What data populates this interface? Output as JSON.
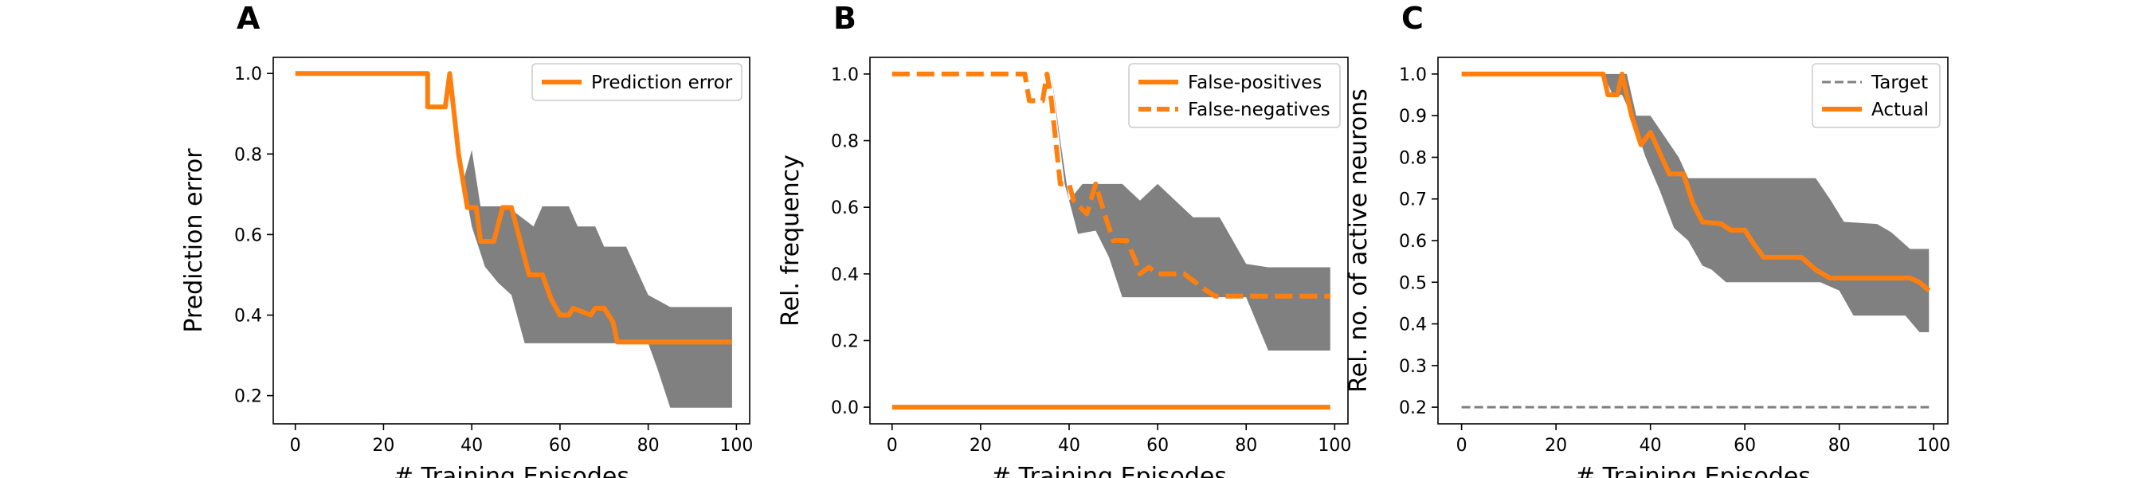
{
  "colors": {
    "orange": "#ff7f0e",
    "band": "#808080",
    "target": "#808080"
  },
  "chart_data": [
    {
      "panel": "A",
      "type": "line",
      "xlabel": "# Training Episodes",
      "ylabel": "Prediction error",
      "xlim": [
        -5,
        103
      ],
      "ylim": [
        0.13,
        1.04
      ],
      "xticks": [
        0,
        20,
        40,
        60,
        80,
        100
      ],
      "yticks": [
        0.2,
        0.4,
        0.6,
        0.8,
        1.0
      ],
      "ytick_labels": [
        "0.2",
        "0.4",
        "0.6",
        "0.8",
        "1.0"
      ],
      "legend_position": "upper-right",
      "series": [
        {
          "name": "Prediction error",
          "style": "solid",
          "points": [
            [
              0,
              1.0
            ],
            [
              30,
              1.0
            ],
            [
              30,
              0.917
            ],
            [
              34,
              0.917
            ],
            [
              35,
              1.0
            ],
            [
              37,
              0.8
            ],
            [
              39,
              0.667
            ],
            [
              41,
              0.667
            ],
            [
              42,
              0.583
            ],
            [
              45,
              0.583
            ],
            [
              47,
              0.667
            ],
            [
              49,
              0.667
            ],
            [
              51,
              0.583
            ],
            [
              53,
              0.5
            ],
            [
              56,
              0.5
            ],
            [
              58,
              0.44
            ],
            [
              60,
              0.4
            ],
            [
              62,
              0.4
            ],
            [
              63,
              0.417
            ],
            [
              67,
              0.4
            ],
            [
              68,
              0.417
            ],
            [
              70,
              0.417
            ],
            [
              72,
              0.383
            ],
            [
              73,
              0.333
            ],
            [
              99,
              0.333
            ]
          ]
        }
      ],
      "band": {
        "upper": [
          [
            0,
            1.0
          ],
          [
            30,
            1.0
          ],
          [
            35,
            1.0
          ],
          [
            38,
            0.73
          ],
          [
            40,
            0.81
          ],
          [
            42,
            0.67
          ],
          [
            45,
            0.67
          ],
          [
            48,
            0.67
          ],
          [
            54,
            0.62
          ],
          [
            56,
            0.67
          ],
          [
            62,
            0.67
          ],
          [
            64,
            0.62
          ],
          [
            68,
            0.62
          ],
          [
            70,
            0.57
          ],
          [
            75,
            0.57
          ],
          [
            80,
            0.45
          ],
          [
            85,
            0.42
          ],
          [
            99,
            0.42
          ]
        ],
        "lower": [
          [
            99,
            0.17
          ],
          [
            85,
            0.17
          ],
          [
            82,
            0.27
          ],
          [
            80,
            0.33
          ],
          [
            52,
            0.33
          ],
          [
            49,
            0.45
          ],
          [
            46,
            0.48
          ],
          [
            43,
            0.52
          ],
          [
            40,
            0.62
          ],
          [
            37,
            0.8
          ],
          [
            35,
            1.0
          ],
          [
            30,
            1.0
          ],
          [
            0,
            1.0
          ]
        ]
      }
    },
    {
      "panel": "B",
      "type": "line",
      "xlabel": "# Training Episodes",
      "ylabel": "Rel. frequency",
      "xlim": [
        -5,
        103
      ],
      "ylim": [
        -0.05,
        1.05
      ],
      "xticks": [
        0,
        20,
        40,
        60,
        80,
        100
      ],
      "yticks": [
        0.0,
        0.2,
        0.4,
        0.6,
        0.8,
        1.0
      ],
      "ytick_labels": [
        "0.0",
        "0.2",
        "0.4",
        "0.6",
        "0.8",
        "1.0"
      ],
      "legend_position": "upper-right",
      "series": [
        {
          "name": "False-positives",
          "style": "solid",
          "points": [
            [
              0,
              0.0
            ],
            [
              99,
              0.0
            ]
          ]
        },
        {
          "name": "False-negatives",
          "style": "dashed",
          "points": [
            [
              0,
              1.0
            ],
            [
              30,
              1.0
            ],
            [
              31,
              0.92
            ],
            [
              34,
              0.92
            ],
            [
              35,
              1.0
            ],
            [
              36,
              0.92
            ],
            [
              38,
              0.67
            ],
            [
              40,
              0.67
            ],
            [
              41,
              0.62
            ],
            [
              44,
              0.58
            ],
            [
              46,
              0.67
            ],
            [
              48,
              0.58
            ],
            [
              50,
              0.5
            ],
            [
              53,
              0.5
            ],
            [
              55,
              0.44
            ],
            [
              56,
              0.4
            ],
            [
              58,
              0.42
            ],
            [
              60,
              0.4
            ],
            [
              64,
              0.4
            ],
            [
              66,
              0.4
            ],
            [
              68,
              0.38
            ],
            [
              71,
              0.35
            ],
            [
              73,
              0.333
            ],
            [
              99,
              0.333
            ]
          ]
        }
      ],
      "band": {
        "upper": [
          [
            36,
            1.0
          ],
          [
            38,
            0.8
          ],
          [
            40,
            0.62
          ],
          [
            43,
            0.67
          ],
          [
            52,
            0.67
          ],
          [
            56,
            0.62
          ],
          [
            60,
            0.67
          ],
          [
            64,
            0.62
          ],
          [
            68,
            0.57
          ],
          [
            74,
            0.57
          ],
          [
            80,
            0.43
          ],
          [
            85,
            0.42
          ],
          [
            99,
            0.42
          ]
        ],
        "lower": [
          [
            99,
            0.17
          ],
          [
            85,
            0.17
          ],
          [
            80,
            0.33
          ],
          [
            52,
            0.33
          ],
          [
            49,
            0.45
          ],
          [
            46,
            0.53
          ],
          [
            42,
            0.52
          ],
          [
            39,
            0.67
          ],
          [
            36,
            1.0
          ]
        ]
      }
    },
    {
      "panel": "C",
      "type": "line",
      "xlabel": "# Training Episodes",
      "ylabel": "Rel. no. of active neurons",
      "xlim": [
        -5,
        103
      ],
      "ylim": [
        0.16,
        1.04
      ],
      "xticks": [
        0,
        20,
        40,
        60,
        80,
        100
      ],
      "yticks": [
        0.2,
        0.3,
        0.4,
        0.5,
        0.6,
        0.7,
        0.8,
        0.9,
        1.0
      ],
      "ytick_labels": [
        "0.2",
        "0.3",
        "0.4",
        "0.5",
        "0.6",
        "0.7",
        "0.8",
        "0.9",
        "1.0"
      ],
      "legend_position": "upper-right",
      "series": [
        {
          "name": "Target",
          "style": "dashed",
          "color_key": "target",
          "points": [
            [
              0,
              0.2
            ],
            [
              99,
              0.2
            ]
          ]
        },
        {
          "name": "Actual",
          "style": "solid",
          "points": [
            [
              0,
              1.0
            ],
            [
              30,
              1.0
            ],
            [
              31,
              0.95
            ],
            [
              33,
              0.95
            ],
            [
              34,
              1.0
            ],
            [
              36,
              0.9
            ],
            [
              38,
              0.83
            ],
            [
              40,
              0.86
            ],
            [
              42,
              0.81
            ],
            [
              44,
              0.76
            ],
            [
              47,
              0.76
            ],
            [
              49,
              0.69
            ],
            [
              51,
              0.645
            ],
            [
              55,
              0.64
            ],
            [
              57,
              0.625
            ],
            [
              60,
              0.625
            ],
            [
              62,
              0.59
            ],
            [
              64,
              0.56
            ],
            [
              72,
              0.56
            ],
            [
              75,
              0.53
            ],
            [
              78,
              0.51
            ],
            [
              95,
              0.51
            ],
            [
              97,
              0.5
            ],
            [
              99,
              0.48
            ]
          ]
        }
      ],
      "band": {
        "upper": [
          [
            0,
            1.0
          ],
          [
            29,
            1.0
          ],
          [
            31,
            1.0
          ],
          [
            35,
            1.0
          ],
          [
            37,
            0.9
          ],
          [
            40,
            0.9
          ],
          [
            43,
            0.85
          ],
          [
            46,
            0.8
          ],
          [
            48,
            0.75
          ],
          [
            75,
            0.75
          ],
          [
            78,
            0.7
          ],
          [
            81,
            0.645
          ],
          [
            88,
            0.64
          ],
          [
            91,
            0.62
          ],
          [
            95,
            0.58
          ],
          [
            99,
            0.58
          ]
        ],
        "lower": [
          [
            99,
            0.38
          ],
          [
            97,
            0.38
          ],
          [
            94,
            0.42
          ],
          [
            83,
            0.42
          ],
          [
            80,
            0.48
          ],
          [
            76,
            0.5
          ],
          [
            56,
            0.5
          ],
          [
            53,
            0.53
          ],
          [
            51,
            0.54
          ],
          [
            48,
            0.6
          ],
          [
            45,
            0.63
          ],
          [
            42,
            0.72
          ],
          [
            39,
            0.8
          ],
          [
            36,
            0.9
          ],
          [
            34,
            0.95
          ],
          [
            32,
            0.95
          ],
          [
            30,
            1.0
          ],
          [
            0,
            1.0
          ]
        ]
      }
    }
  ]
}
